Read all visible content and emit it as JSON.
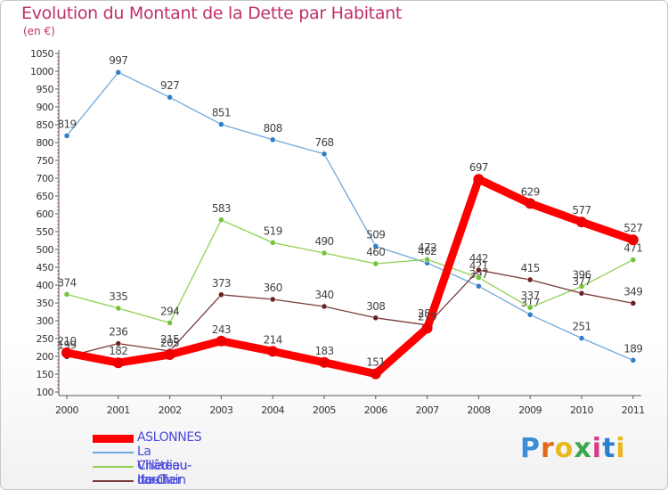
{
  "header": {
    "title": "Evolution du Montant de la Dette par Habitant",
    "subtitle": "(en €)"
  },
  "brand": {
    "logo_text": "Proxiti",
    "letter_colors": [
      "#3a8fd6",
      "#e06a1a",
      "#e8b820",
      "#3aa84a",
      "#d83a8a",
      "#2a7fc9",
      "#e8b820"
    ]
  },
  "chart_data": {
    "type": "line",
    "title": "Evolution du Montant de la Dette par Habitant",
    "subtitle": "(en €)",
    "xlabel": "",
    "ylabel": "",
    "x": [
      "2000",
      "2001",
      "2002",
      "2003",
      "2004",
      "2005",
      "2006",
      "2007",
      "2008",
      "2009",
      "2010",
      "2011"
    ],
    "ylim": [
      100,
      1050
    ],
    "yticks": [
      100,
      150,
      200,
      250,
      300,
      350,
      400,
      450,
      500,
      550,
      600,
      650,
      700,
      750,
      800,
      850,
      900,
      950,
      1000,
      1050
    ],
    "grid": false,
    "legend_position": "bottom-left",
    "series": [
      {
        "name": "La Villedieu-du-Clain",
        "color": "#6fa8dc",
        "marker_color": "#2f7fc8",
        "values": [
          819,
          997,
          927,
          851,
          808,
          768,
          509,
          462,
          397,
          317,
          251,
          189
        ],
        "labels": [
          "819",
          "997",
          "927",
          "851",
          "808",
          "768",
          "509",
          "462",
          "397",
          "317",
          "251",
          "189"
        ]
      },
      {
        "name": "Château-Larcher",
        "color": "#8fd14f",
        "marker_color": "#72c23a",
        "values": [
          374,
          335,
          294,
          583,
          519,
          490,
          460,
          472,
          421,
          337,
          396,
          471
        ],
        "labels": [
          "374",
          "335",
          "294",
          "583",
          "519",
          "490",
          "460",
          "472",
          "421",
          "337",
          "396",
          "471"
        ]
      },
      {
        "name": "Iteuil",
        "color": "#7a3a3a",
        "marker_color": "#6a2222",
        "values": [
          199,
          236,
          215,
          373,
          360,
          340,
          308,
          288,
          442,
          415,
          377,
          349
        ],
        "labels": [
          "199",
          "236",
          "215",
          "373",
          "360",
          "340",
          "308",
          "288",
          "442",
          "415",
          "377",
          "349"
        ]
      },
      {
        "name": "ASLONNES",
        "color": "#ff0000",
        "marker_color": "#ee0000",
        "highlight": true,
        "values": [
          210,
          182,
          205,
          243,
          214,
          183,
          151,
          279,
          697,
          629,
          577,
          527
        ],
        "labels": [
          "210",
          "182",
          "205",
          "243",
          "214",
          "183",
          "151",
          "279",
          "697",
          "629",
          "577",
          "527"
        ]
      }
    ],
    "legend": [
      {
        "name": "ASLONNES",
        "color": "#ff0000",
        "label_color": "#4a4adc",
        "thick": true
      },
      {
        "name": "La Villedieu-du-Clain",
        "color": "#6fa8dc",
        "label_color": "#4a4adc",
        "thick": false
      },
      {
        "name": "Château-Larcher",
        "color": "#8fd14f",
        "label_color": "#4a4adc",
        "thick": false
      },
      {
        "name": "Iteuil",
        "color": "#7a3a3a",
        "label_color": "#4a4adc",
        "thick": false
      }
    ]
  }
}
